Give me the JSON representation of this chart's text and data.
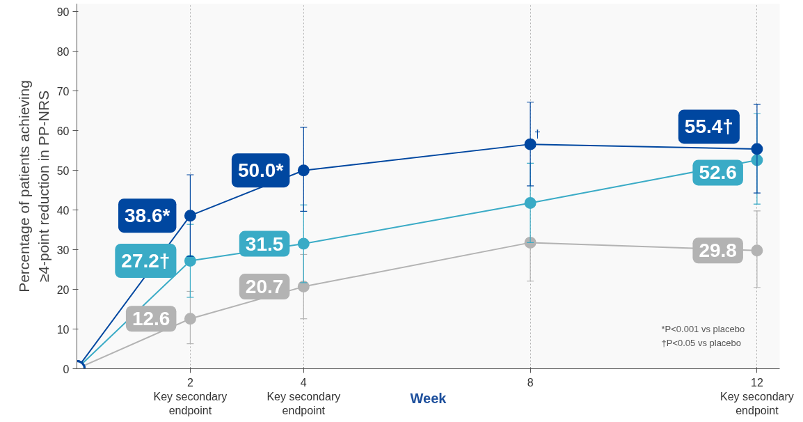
{
  "chart_data": {
    "type": "line",
    "xlabel": "Week",
    "ylabel": "Percentage of patients achieving ≥4-point reduction in PP-NRS",
    "x": [
      0,
      2,
      4,
      8,
      12
    ],
    "xlim": [
      0,
      12.4
    ],
    "ylim": [
      0,
      92
    ],
    "xticks": [
      {
        "value": 2,
        "label": "2\nKey secondary\nendpoint"
      },
      {
        "value": 4,
        "label": "4\nKey secondary\nendpoint"
      },
      {
        "value": 8,
        "label": "8"
      },
      {
        "value": 12,
        "label": "12\nKey secondary\nendpoint"
      }
    ],
    "yticks": [
      0,
      10,
      20,
      30,
      40,
      50,
      60,
      70,
      80,
      90
    ],
    "grid": "x",
    "marker": "circle",
    "line_style": "solid",
    "series": [
      {
        "color": "#b3b3b3",
        "values": [
          0,
          12.6,
          20.7,
          31.8,
          29.8
        ],
        "errors": [
          null,
          [
            6.3,
            19.5
          ],
          [
            12.6,
            28.8
          ],
          [
            22.1,
            31.8
          ],
          [
            20.5,
            39.8
          ]
        ],
        "value_labels": [
          null,
          "12.6",
          "20.7",
          null,
          "29.8"
        ]
      },
      {
        "color": "#3aabc6",
        "values": [
          0,
          27.2,
          31.5,
          41.8,
          52.6
        ],
        "errors": [
          null,
          [
            18.0,
            36.4
          ],
          [
            21.7,
            41.3
          ],
          [
            31.8,
            51.8
          ],
          [
            41.5,
            64.3
          ]
        ],
        "value_labels": [
          null,
          "27.2†",
          "31.5",
          null,
          "52.6"
        ]
      },
      {
        "color": "#0047a0",
        "values": [
          0,
          38.6,
          50.0,
          56.6,
          55.4
        ],
        "errors": [
          null,
          [
            28.3,
            48.9
          ],
          [
            39.7,
            60.9
          ],
          [
            46.1,
            67.2
          ],
          [
            44.3,
            66.7
          ]
        ],
        "value_labels": [
          null,
          "38.6*",
          "50.0*",
          null,
          "55.4†"
        ]
      }
    ],
    "annotations": [
      {
        "text": "†",
        "x": 8,
        "y": 56.6
      },
      "*P<0.001 vs placebo",
      "†P<0.05 vs placebo"
    ]
  }
}
